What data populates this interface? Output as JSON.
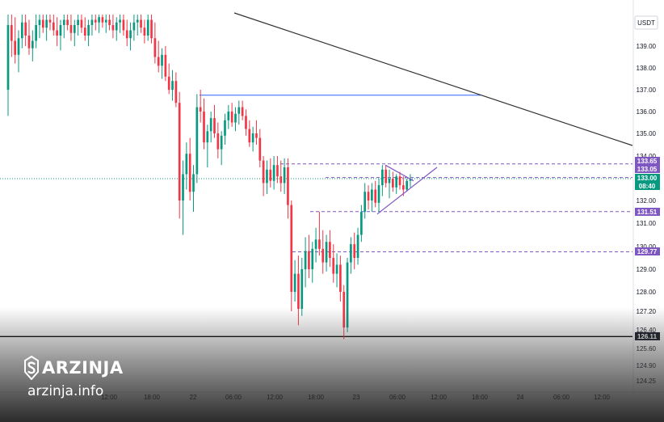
{
  "chart_data": {
    "type": "candlestick",
    "currency": "USDT",
    "y_range": [
      125.0,
      140.2
    ],
    "y_ticks": [
      139.0,
      138.0,
      137.0,
      136.0,
      135.0,
      134.0,
      132.0,
      131.0,
      130.0,
      129.0,
      128.0,
      127.2,
      126.4,
      125.6,
      124.9,
      124.25
    ],
    "x_ticks": [
      "12:00",
      "18:00",
      "22",
      "06:00",
      "12:00",
      "18:00",
      "23",
      "06:00",
      "12:00",
      "18:00",
      "24",
      "06:00",
      "12:00"
    ],
    "price_tags": [
      {
        "value": "133.65",
        "style": "purple"
      },
      {
        "value": "133.05",
        "style": "purple"
      },
      {
        "value": "133.00",
        "style": "green",
        "sub": "08:40"
      },
      {
        "value": "131.51",
        "style": "purple"
      },
      {
        "value": "129.77",
        "style": "purple"
      },
      {
        "value": "126.11",
        "style": "black"
      }
    ],
    "horizontal_levels": [
      {
        "price": 133.65,
        "color": "#7e57c2",
        "dash": true
      },
      {
        "price": 133.05,
        "color": "#7e57c2",
        "dash": true
      },
      {
        "price": 131.51,
        "color": "#7e57c2",
        "dash": true
      },
      {
        "price": 129.77,
        "color": "#7e57c2",
        "dash": true
      },
      {
        "price": 136.75,
        "color": "#2962ff",
        "dash": false
      },
      {
        "price": 126.11,
        "color": "#000000",
        "dash": false
      }
    ],
    "grid": false,
    "up_color": "#089981",
    "down_color": "#f23645",
    "candles": [
      [
        137.0,
        140.2,
        135.8,
        139.8
      ],
      [
        139.8,
        140.2,
        138.5,
        139.2
      ],
      [
        139.2,
        140.1,
        138.2,
        138.6
      ],
      [
        138.6,
        139.6,
        137.8,
        139.3
      ],
      [
        139.3,
        140.2,
        138.9,
        139.9
      ],
      [
        139.9,
        140.2,
        139.0,
        139.4
      ],
      [
        139.4,
        140.0,
        138.6,
        138.9
      ],
      [
        138.9,
        139.6,
        138.3,
        139.2
      ],
      [
        139.2,
        140.2,
        138.9,
        139.8
      ],
      [
        139.8,
        140.2,
        139.3,
        140.0
      ],
      [
        140.0,
        140.2,
        139.5,
        139.7
      ],
      [
        139.7,
        140.2,
        139.2,
        140.0
      ],
      [
        140.0,
        140.2,
        139.6,
        139.9
      ],
      [
        139.9,
        140.2,
        139.4,
        139.6
      ],
      [
        139.6,
        140.1,
        139.0,
        139.4
      ],
      [
        139.4,
        140.0,
        138.8,
        139.8
      ],
      [
        139.8,
        140.2,
        139.3,
        140.0
      ],
      [
        140.0,
        140.2,
        139.6,
        139.8
      ],
      [
        139.8,
        140.2,
        139.2,
        139.5
      ],
      [
        139.5,
        140.0,
        139.0,
        139.8
      ],
      [
        139.8,
        140.2,
        139.4,
        140.0
      ],
      [
        140.0,
        140.2,
        139.5,
        139.7
      ],
      [
        139.7,
        140.1,
        139.2,
        139.4
      ],
      [
        139.4,
        140.0,
        139.0,
        139.8
      ],
      [
        139.8,
        140.2,
        139.4,
        140.0
      ],
      [
        140.0,
        140.2,
        139.6,
        139.9
      ],
      [
        139.9,
        140.2,
        139.5,
        140.1
      ],
      [
        140.1,
        140.2,
        139.7,
        139.9
      ],
      [
        139.9,
        140.2,
        139.5,
        140.0
      ],
      [
        140.0,
        140.2,
        139.6,
        139.8
      ],
      [
        139.8,
        140.2,
        139.3,
        139.6
      ],
      [
        139.6,
        140.1,
        139.2,
        139.9
      ],
      [
        139.9,
        140.2,
        139.5,
        140.0
      ],
      [
        140.0,
        140.2,
        139.4,
        139.6
      ],
      [
        139.6,
        140.0,
        139.0,
        139.3
      ],
      [
        139.3,
        139.9,
        138.8,
        139.6
      ],
      [
        139.6,
        140.2,
        139.2,
        139.9
      ],
      [
        139.9,
        140.2,
        139.4,
        140.0
      ],
      [
        140.0,
        140.2,
        139.5,
        139.7
      ],
      [
        139.7,
        140.0,
        139.1,
        139.4
      ],
      [
        139.4,
        140.2,
        139.2,
        140.0
      ],
      [
        140.0,
        140.2,
        139.1,
        139.3
      ],
      [
        139.3,
        139.9,
        138.2,
        138.5
      ],
      [
        138.5,
        139.2,
        137.8,
        138.1
      ],
      [
        138.1,
        138.9,
        137.5,
        138.6
      ],
      [
        138.6,
        139.0,
        137.4,
        137.6
      ],
      [
        137.6,
        138.2,
        136.8,
        137.0
      ],
      [
        137.0,
        137.9,
        136.5,
        137.4
      ],
      [
        137.4,
        137.8,
        136.2,
        136.4
      ],
      [
        136.4,
        136.9,
        131.2,
        132.0
      ],
      [
        132.0,
        133.8,
        130.5,
        133.2
      ],
      [
        133.2,
        134.6,
        132.5,
        134.1
      ],
      [
        134.1,
        134.8,
        132.0,
        132.4
      ],
      [
        132.4,
        133.6,
        131.5,
        133.2
      ],
      [
        133.2,
        136.8,
        132.8,
        136.2
      ],
      [
        136.2,
        137.0,
        135.5,
        136.0
      ],
      [
        136.0,
        136.6,
        134.3,
        134.6
      ],
      [
        134.6,
        135.4,
        133.5,
        135.1
      ],
      [
        135.1,
        136.0,
        134.6,
        135.7
      ],
      [
        135.7,
        136.3,
        134.8,
        135.0
      ],
      [
        135.0,
        135.5,
        133.9,
        134.3
      ],
      [
        134.3,
        135.1,
        133.6,
        134.9
      ],
      [
        134.9,
        135.9,
        134.5,
        135.6
      ],
      [
        135.6,
        136.3,
        135.2,
        136.0
      ],
      [
        136.0,
        136.4,
        135.3,
        135.5
      ],
      [
        135.5,
        136.2,
        135.1,
        135.9
      ],
      [
        135.9,
        136.5,
        135.4,
        136.2
      ],
      [
        136.2,
        136.5,
        135.6,
        135.8
      ],
      [
        135.8,
        136.1,
        134.9,
        135.2
      ],
      [
        135.2,
        135.6,
        134.4,
        134.6
      ],
      [
        134.6,
        135.3,
        134.2,
        135.0
      ],
      [
        135.0,
        135.6,
        134.5,
        134.8
      ],
      [
        134.8,
        135.2,
        133.5,
        133.8
      ],
      [
        133.8,
        134.0,
        132.2,
        132.8
      ],
      [
        132.8,
        133.8,
        132.3,
        133.4
      ],
      [
        133.4,
        133.9,
        132.6,
        132.9
      ],
      [
        132.9,
        134.0,
        132.5,
        133.6
      ],
      [
        133.6,
        134.0,
        132.8,
        133.1
      ],
      [
        133.1,
        133.8,
        132.4,
        132.8
      ],
      [
        132.8,
        133.9,
        132.3,
        133.5
      ],
      [
        133.5,
        133.9,
        131.2,
        131.8
      ],
      [
        131.8,
        132.0,
        127.2,
        128.0
      ],
      [
        128.0,
        129.4,
        127.6,
        128.8
      ],
      [
        128.8,
        129.6,
        126.6,
        127.3
      ],
      [
        127.3,
        129.5,
        127.0,
        129.0
      ],
      [
        129.0,
        130.4,
        128.2,
        129.8
      ],
      [
        129.8,
        130.5,
        128.6,
        129.0
      ],
      [
        129.0,
        130.2,
        128.4,
        129.9
      ],
      [
        129.9,
        130.8,
        129.3,
        130.3
      ],
      [
        130.3,
        131.5,
        129.6,
        129.9
      ],
      [
        129.9,
        130.7,
        128.8,
        129.3
      ],
      [
        129.3,
        130.5,
        128.9,
        130.2
      ],
      [
        130.2,
        130.7,
        129.1,
        129.5
      ],
      [
        129.5,
        130.1,
        128.4,
        128.8
      ],
      [
        128.8,
        129.7,
        128.2,
        129.2
      ],
      [
        129.2,
        129.6,
        127.6,
        128.0
      ],
      [
        128.0,
        128.3,
        126.0,
        126.5
      ],
      [
        126.5,
        129.5,
        126.3,
        129.3
      ],
      [
        129.3,
        130.4,
        128.8,
        130.1
      ],
      [
        130.1,
        130.6,
        129.0,
        129.5
      ],
      [
        129.5,
        130.8,
        129.2,
        130.5
      ],
      [
        130.5,
        131.8,
        130.2,
        131.5
      ],
      [
        131.5,
        132.8,
        131.2,
        132.4
      ],
      [
        132.4,
        132.7,
        131.6,
        132.0
      ],
      [
        132.0,
        132.8,
        131.5,
        132.5
      ],
      [
        132.5,
        132.9,
        131.7,
        131.9
      ],
      [
        131.9,
        133.0,
        131.5,
        132.7
      ],
      [
        132.7,
        133.6,
        132.2,
        133.4
      ],
      [
        133.4,
        133.6,
        132.6,
        132.8
      ],
      [
        132.8,
        133.4,
        132.1,
        133.0
      ],
      [
        133.0,
        133.3,
        132.4,
        132.6
      ],
      [
        132.6,
        133.2,
        132.3,
        133.1
      ],
      [
        133.1,
        133.3,
        132.5,
        132.7
      ],
      [
        132.7,
        133.1,
        132.2,
        132.5
      ],
      [
        132.5,
        133.0,
        132.4,
        132.9
      ],
      [
        132.9,
        133.2,
        132.6,
        133.0
      ]
    ]
  },
  "brand": {
    "logo_icon": "arzinja-shield-s-icon",
    "name": "ARZINJA",
    "url": "arzinja.info"
  }
}
